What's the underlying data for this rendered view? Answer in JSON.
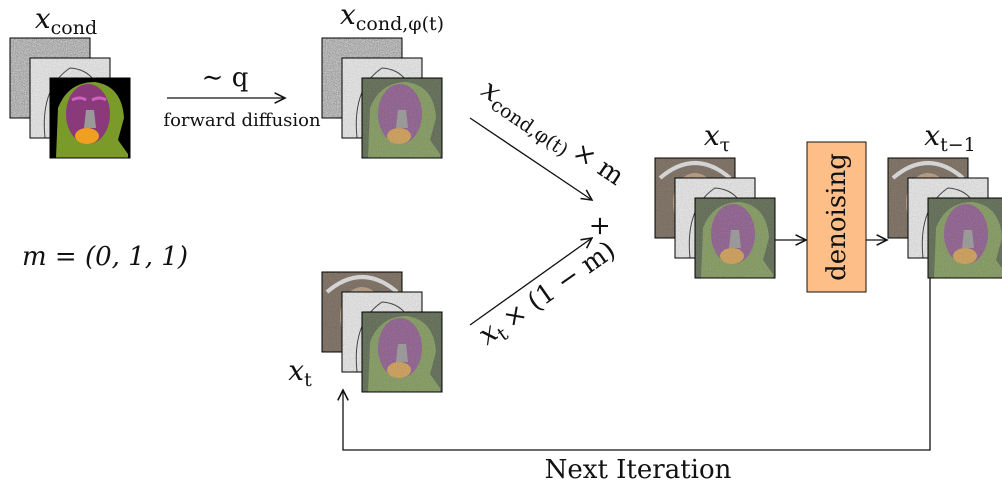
{
  "inputs": {
    "condition": {
      "symbol": "x",
      "subscript": "cond"
    },
    "noised_condition": {
      "symbol": "x",
      "subscript": "cond,φ(t)"
    },
    "current": {
      "symbol": "x",
      "subscript": "t"
    }
  },
  "forward": {
    "operator": "∼ q",
    "label": "forward diffusion"
  },
  "mask": "m = (0, 1, 1)",
  "terms": {
    "condition_term": {
      "symbol": "x",
      "subscript": "cond,φ(t)",
      "factor": "× m"
    },
    "current_term": {
      "symbol": "x",
      "subscript": "t",
      "factor": "× (1 − m)"
    },
    "combine": "+"
  },
  "merged": {
    "symbol": "x",
    "subscript": "τ"
  },
  "process": "denoising",
  "output": {
    "symbol": "x",
    "subscript": "t−1"
  },
  "loop": "Next Iteration"
}
